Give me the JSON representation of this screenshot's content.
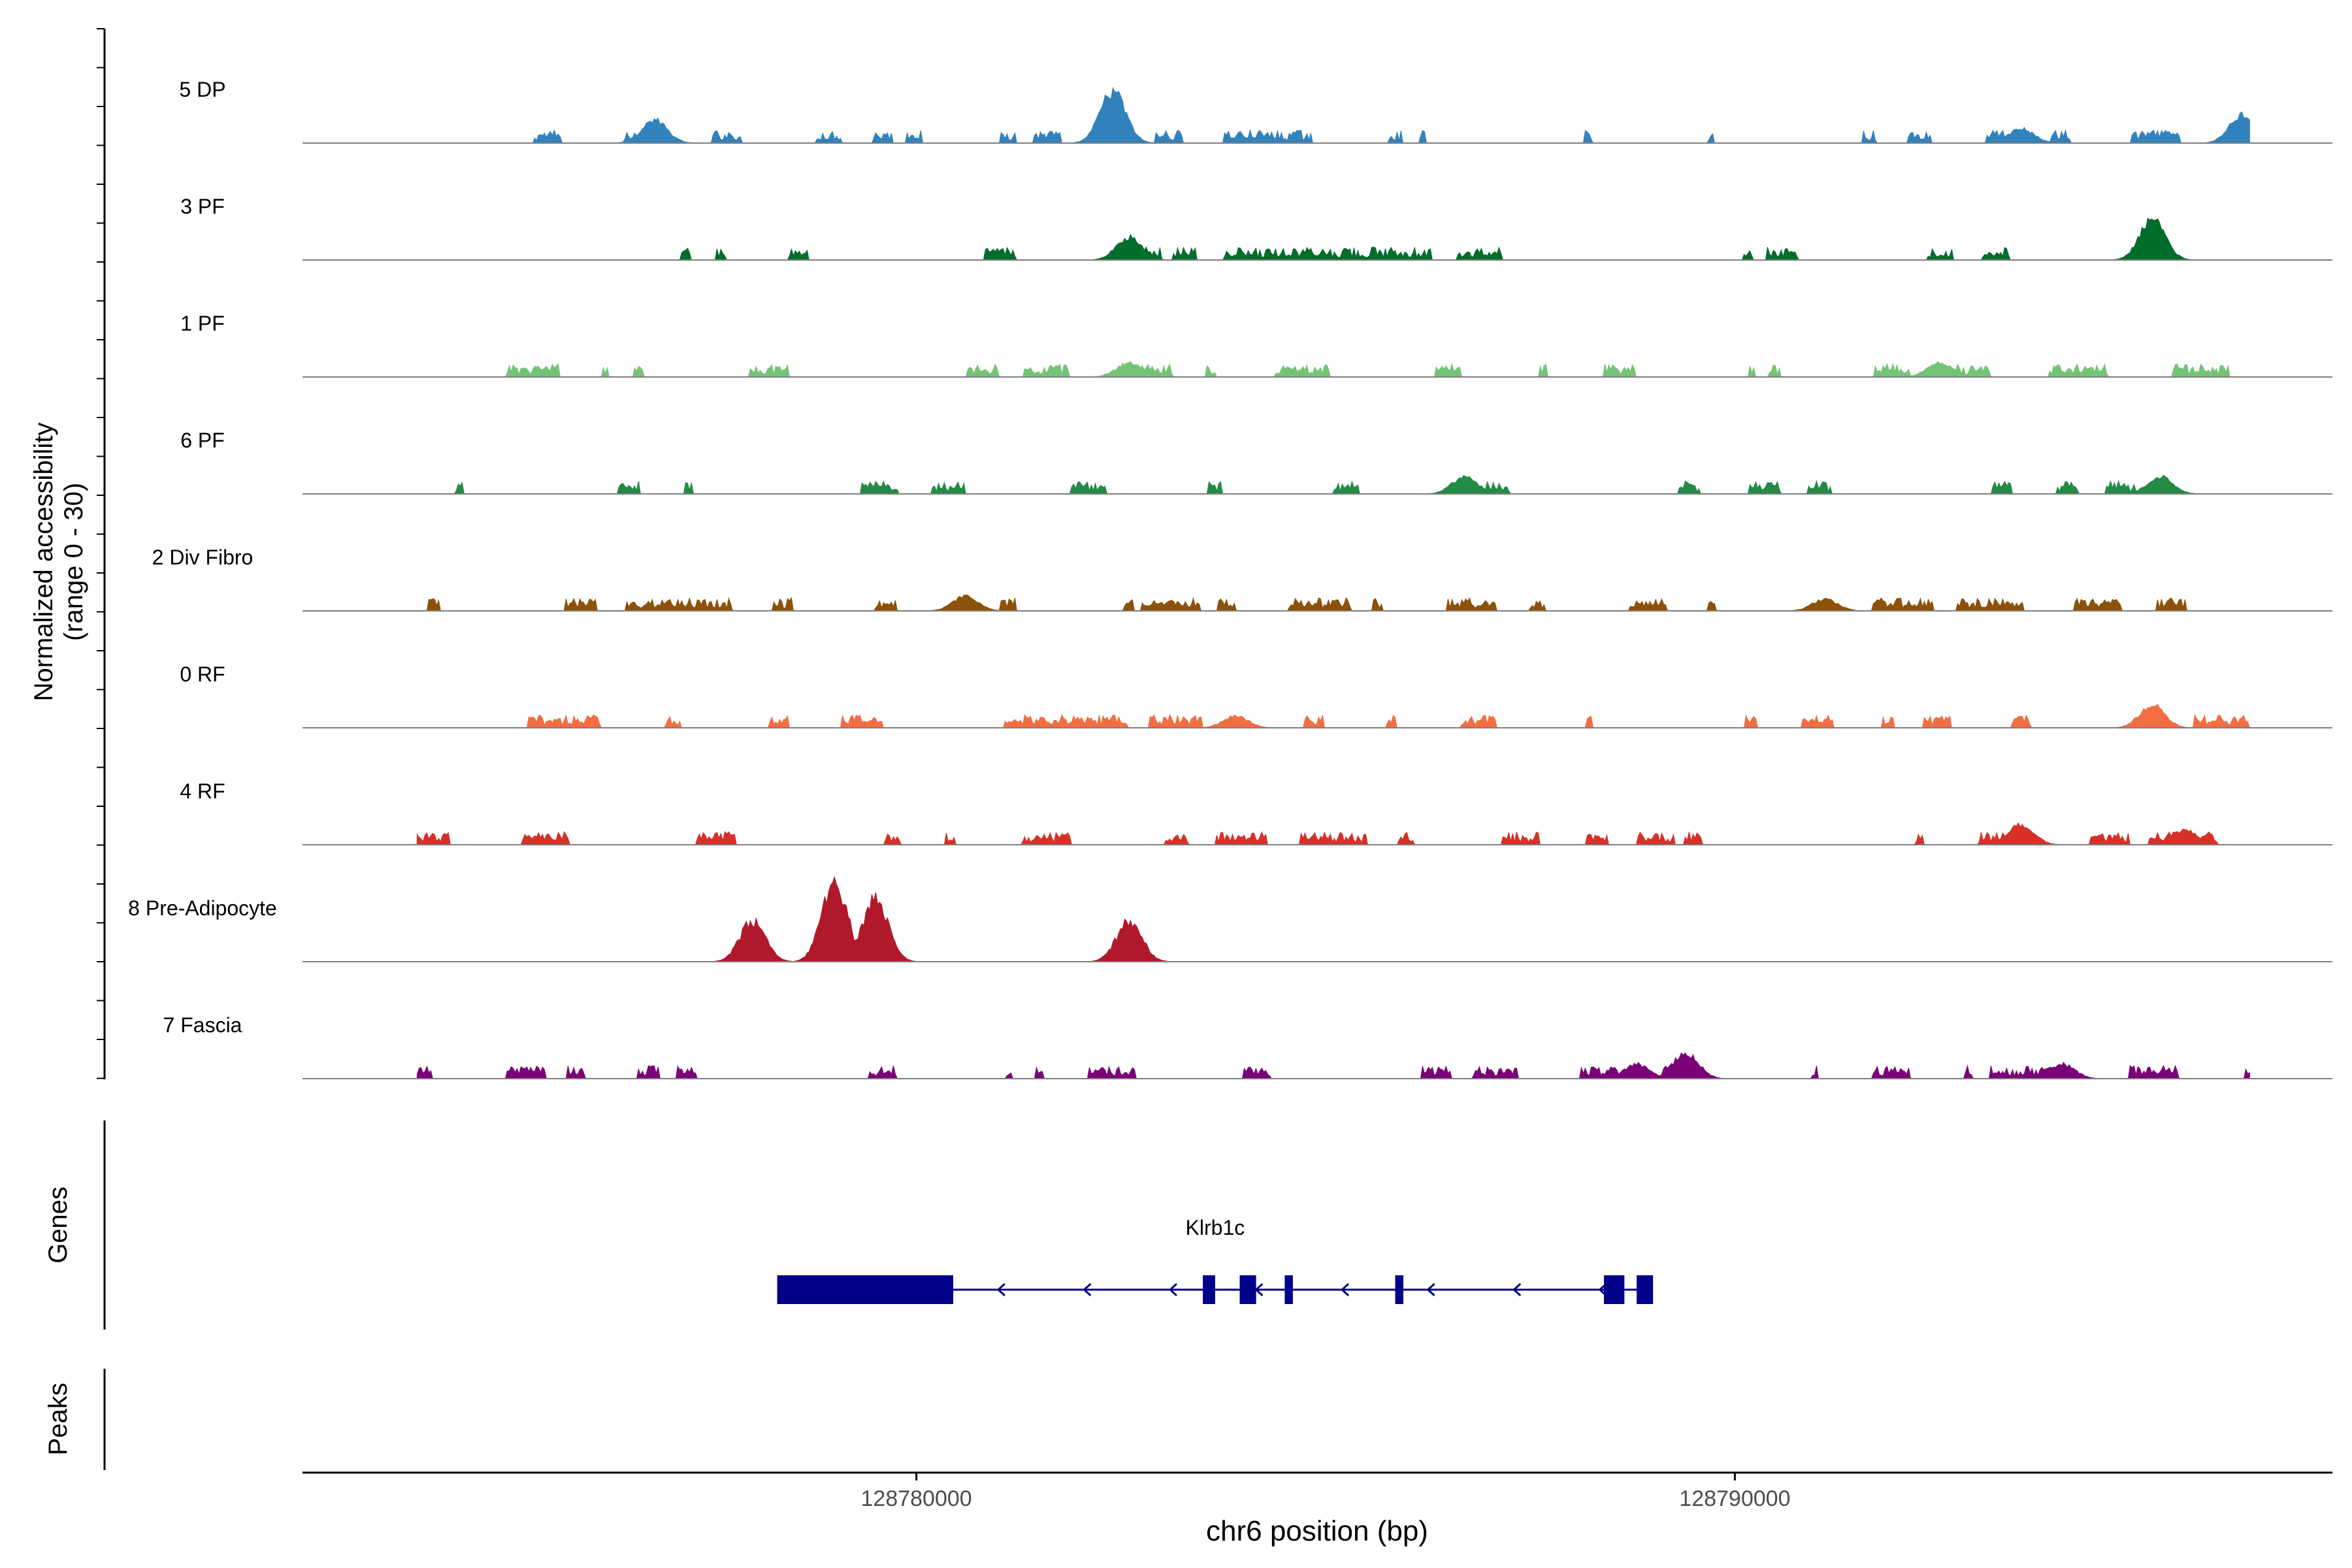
{
  "chart_data": {
    "type": "area",
    "title": "",
    "ylabel_line1": "Normalized accessibility",
    "ylabel_line2": "(range 0 - 30)",
    "y_range": [
      0,
      30
    ],
    "xlabel": "chr6 position (bp)",
    "x_range": [
      128772500,
      128797300
    ],
    "x_ticks": [
      {
        "value": 128780000,
        "label": "128780000"
      },
      {
        "value": 128790000,
        "label": "128790000"
      }
    ],
    "tracks": [
      {
        "name": "5 DP",
        "color": "#3182bd",
        "peaks": [
          [
            128776800,
            8
          ],
          [
            128782400,
            18
          ],
          [
            128793500,
            5
          ],
          [
            128796200,
            10
          ]
        ]
      },
      {
        "name": "3 PF",
        "color": "#006d2c",
        "peaks": [
          [
            128782600,
            8
          ],
          [
            128795100,
            14
          ]
        ]
      },
      {
        "name": "1 PF",
        "color": "#74c476",
        "peaks": [
          [
            128782600,
            5
          ],
          [
            128792500,
            5
          ]
        ]
      },
      {
        "name": "6 PF",
        "color": "#238b45",
        "peaks": [
          [
            128786700,
            6
          ],
          [
            128795200,
            6
          ]
        ]
      },
      {
        "name": "2 Div Fibro",
        "color": "#8c510a",
        "peaks": [
          [
            128780600,
            5
          ],
          [
            128791100,
            4
          ]
        ]
      },
      {
        "name": "0 RF",
        "color": "#f46d43",
        "peaks": [
          [
            128795100,
            8
          ],
          [
            128783900,
            4
          ]
        ]
      },
      {
        "name": "4 RF",
        "color": "#d73027",
        "peaks": [
          [
            128793500,
            7
          ],
          [
            128795500,
            5
          ]
        ]
      },
      {
        "name": "8 Pre-Adipocyte",
        "color": "#b2182b",
        "peaks": [
          [
            128779000,
            28
          ],
          [
            128779500,
            22
          ],
          [
            128778000,
            14
          ],
          [
            128782600,
            14
          ]
        ]
      },
      {
        "name": "7 Fascia",
        "color": "#7a0177",
        "peaks": [
          [
            128789400,
            9
          ],
          [
            128788800,
            5
          ],
          [
            128794000,
            5
          ]
        ]
      }
    ],
    "genes_label": "Genes",
    "peaks_label": "Peaks",
    "gene": {
      "name": "Klrb1c",
      "strand": "-",
      "color": "#00008b",
      "start": 128778300,
      "end": 128789000,
      "exons": [
        [
          128778300,
          128780450
        ],
        [
          128783500,
          128783650
        ],
        [
          128783950,
          128784150
        ],
        [
          128784500,
          128784600
        ],
        [
          128785850,
          128785950
        ],
        [
          128788400,
          128788650
        ],
        [
          128788800,
          128789000
        ]
      ]
    }
  }
}
